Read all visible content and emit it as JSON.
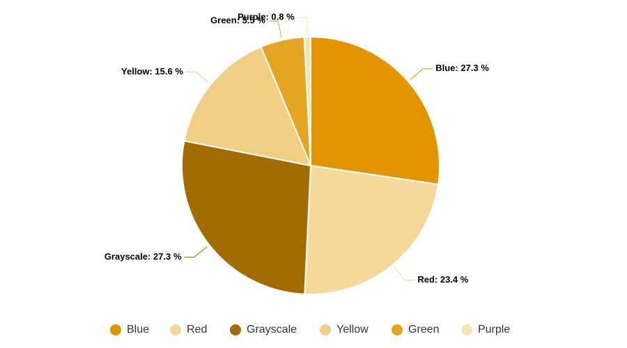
{
  "chart_data": {
    "type": "pie",
    "categories": [
      "Blue",
      "Red",
      "Grayscale",
      "Yellow",
      "Green",
      "Purple"
    ],
    "values": [
      27.3,
      23.4,
      27.3,
      15.6,
      5.5,
      0.8
    ],
    "value_labels": [
      "Blue: 27.3 %",
      "Red: 23.4 %",
      "Grayscale: 27.3 %",
      "Yellow: 15.6 %",
      "Green: 5.5 %",
      "Purple: 0.8 %"
    ],
    "colors": [
      "#e39500",
      "#f3d99b",
      "#a36c00",
      "#f0cf84",
      "#e6a520",
      "#f5e2b4"
    ],
    "legend": "bottom"
  }
}
